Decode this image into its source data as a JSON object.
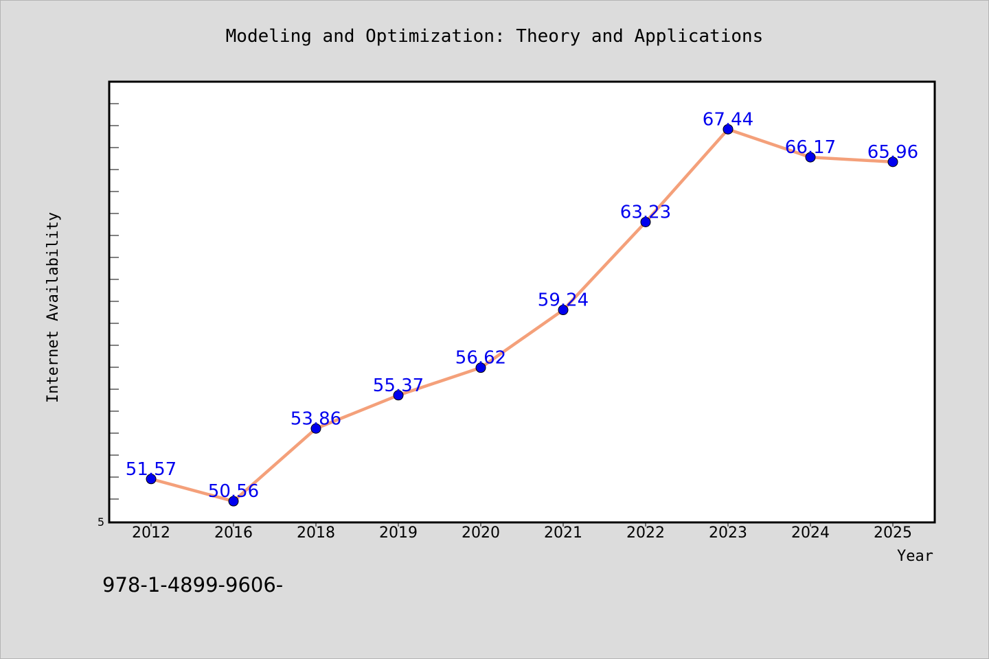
{
  "chart_data": {
    "type": "line",
    "title": "Modeling and Optimization: Theory and Applications",
    "xlabel": "Year",
    "ylabel": "Internet Availability",
    "categories": [
      "2012",
      "2016",
      "2018",
      "2019",
      "2020",
      "2021",
      "2022",
      "2023",
      "2024",
      "2025"
    ],
    "values": [
      51.57,
      50.56,
      53.86,
      55.37,
      56.62,
      59.24,
      63.23,
      67.44,
      66.17,
      65.96
    ],
    "data_labels": [
      "51.57",
      "50.56",
      "53.86",
      "55.37",
      "56.62",
      "59.24",
      "63.23",
      "67.44",
      "66.17",
      "65.96"
    ],
    "ylim": [
      49.6,
      69.6
    ],
    "y_tick_label": "5",
    "grid": false,
    "line_color": "#f4a07a",
    "marker_color": "#0000ee",
    "label_color": "#0000ee"
  },
  "footer": {
    "isbn_text": "978-1-4899-9606-"
  }
}
